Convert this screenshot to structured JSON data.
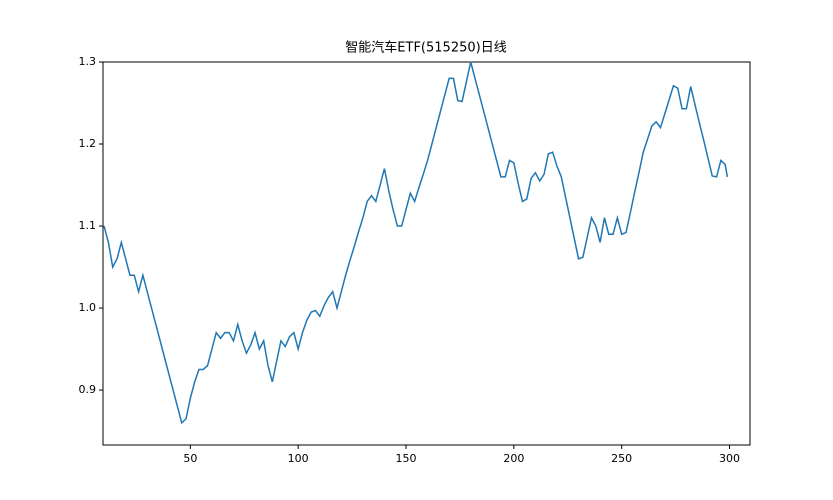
{
  "chart_data": {
    "type": "line",
    "title": "智能汽车ETF(515250)日线",
    "x": [
      10,
      12,
      14,
      16,
      18,
      20,
      22,
      24,
      26,
      28,
      30,
      32,
      34,
      36,
      38,
      40,
      42,
      44,
      46,
      48,
      50,
      52,
      54,
      56,
      58,
      60,
      62,
      64,
      66,
      68,
      70,
      72,
      74,
      76,
      78,
      80,
      82,
      84,
      86,
      88,
      90,
      92,
      94,
      96,
      98,
      100,
      102,
      104,
      106,
      108,
      110,
      112,
      114,
      116,
      118,
      120,
      122,
      124,
      126,
      128,
      130,
      132,
      134,
      136,
      138,
      140,
      142,
      144,
      146,
      148,
      150,
      152,
      154,
      156,
      158,
      160,
      162,
      164,
      166,
      168,
      170,
      172,
      174,
      176,
      178,
      180,
      182,
      184,
      186,
      188,
      190,
      192,
      194,
      196,
      198,
      200,
      202,
      204,
      206,
      208,
      210,
      212,
      214,
      216,
      218,
      220,
      222,
      224,
      226,
      228,
      230,
      232,
      234,
      236,
      238,
      240,
      242,
      244,
      246,
      248,
      250,
      252,
      254,
      256,
      258,
      260,
      262,
      264,
      266,
      268,
      270,
      272,
      274,
      276,
      278,
      280,
      282,
      284,
      286,
      288,
      290,
      292,
      294,
      296,
      298,
      299
    ],
    "series": [
      {
        "color": "#1f77b4",
        "values": [
          1.1,
          1.08,
          1.05,
          1.06,
          1.08,
          1.06,
          1.04,
          1.04,
          1.02,
          1.04,
          1.02,
          1.0,
          0.98,
          0.96,
          0.94,
          0.92,
          0.9,
          0.88,
          0.86,
          0.865,
          0.89,
          0.91,
          0.925,
          0.925,
          0.93,
          0.95,
          0.97,
          0.963,
          0.97,
          0.97,
          0.96,
          0.98,
          0.96,
          0.945,
          0.955,
          0.97,
          0.95,
          0.96,
          0.93,
          0.91,
          0.935,
          0.96,
          0.953,
          0.965,
          0.97,
          0.95,
          0.97,
          0.985,
          0.995,
          0.997,
          0.99,
          1.003,
          1.013,
          1.02,
          1.0,
          1.02,
          1.04,
          1.058,
          1.075,
          1.093,
          1.11,
          1.13,
          1.137,
          1.13,
          1.15,
          1.17,
          1.143,
          1.12,
          1.1,
          1.1,
          1.12,
          1.14,
          1.13,
          1.147,
          1.163,
          1.18,
          1.2,
          1.22,
          1.24,
          1.26,
          1.28,
          1.28,
          1.253,
          1.252,
          1.276,
          1.3,
          1.28,
          1.26,
          1.24,
          1.22,
          1.2,
          1.18,
          1.16,
          1.16,
          1.18,
          1.177,
          1.152,
          1.13,
          1.133,
          1.158,
          1.165,
          1.155,
          1.163,
          1.188,
          1.19,
          1.173,
          1.16,
          1.135,
          1.11,
          1.085,
          1.06,
          1.062,
          1.086,
          1.11,
          1.1,
          1.08,
          1.11,
          1.09,
          1.09,
          1.11,
          1.09,
          1.092,
          1.116,
          1.141,
          1.165,
          1.19,
          1.206,
          1.222,
          1.227,
          1.22,
          1.237,
          1.254,
          1.271,
          1.268,
          1.243,
          1.243,
          1.27,
          1.248,
          1.226,
          1.205,
          1.183,
          1.161,
          1.16,
          1.18,
          1.175,
          1.16
        ]
      }
    ],
    "xlim": [
      9.5,
      309.5
    ],
    "xticks": [
      50,
      100,
      150,
      200,
      250,
      300
    ],
    "ylim": [
      0.833,
      1.3
    ],
    "yticks": [
      0.9,
      {
        "value": 1.0,
        "label": "1.0"
      },
      1.1,
      1.2,
      1.3
    ],
    "grid": false
  }
}
